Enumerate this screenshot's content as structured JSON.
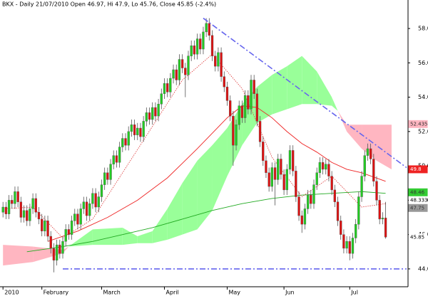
{
  "chart_data": {
    "type": "candlestick",
    "title": "BKX - Daily 21/07/2010 Open 46.97, Hi 47.9, Lo 45.76, Close 45.85 (-2.4%)",
    "categories": [
      "2010",
      null,
      null,
      null,
      null,
      null,
      null,
      null,
      null,
      null,
      null,
      null,
      null,
      "February",
      null,
      null,
      null,
      null,
      null,
      null,
      null,
      null,
      null,
      null,
      null,
      null,
      null,
      null,
      null,
      null,
      null,
      null,
      null,
      "March",
      null,
      null,
      null,
      null,
      null,
      null,
      null,
      null,
      null,
      null,
      null,
      null,
      null,
      null,
      null,
      null,
      null,
      null,
      null,
      null,
      "April",
      null,
      null,
      null,
      null,
      null,
      null,
      null,
      null,
      null,
      null,
      null,
      null,
      null,
      null,
      null,
      null,
      null,
      null,
      null,
      null,
      "May",
      null,
      null,
      null,
      null,
      null,
      null,
      null,
      null,
      null,
      null,
      null,
      null,
      null,
      null,
      null,
      null,
      null,
      null,
      "Jun",
      null,
      null,
      null,
      null,
      null,
      null,
      null,
      null,
      null,
      null,
      null,
      null,
      null,
      null,
      null,
      null,
      null,
      null,
      null,
      null,
      null,
      "Jul",
      null,
      null,
      null,
      null,
      null,
      null,
      null,
      null,
      null,
      null,
      null,
      null
    ],
    "open": [
      47.3,
      47.6,
      47.2,
      48.0,
      47.8,
      48.5,
      47.9,
      47.0,
      47.4,
      46.8,
      47.5,
      48.1,
      47.3,
      46.9,
      46.2,
      46.8,
      45.9,
      45.2,
      44.5,
      45.4,
      44.9,
      45.6,
      46.3,
      46.0,
      46.8,
      47.2,
      46.6,
      47.5,
      47.9,
      47.1,
      47.8,
      48.4,
      47.6,
      48.2,
      48.9,
      49.6,
      49.2,
      50.1,
      50.6,
      50.2,
      51.1,
      51.6,
      51.2,
      52.0,
      52.4,
      51.8,
      52.2,
      51.7,
      52.6,
      53.1,
      52.7,
      53.4,
      52.9,
      53.6,
      54.2,
      54.8,
      54.3,
      55.1,
      55.6,
      55.0,
      56.2,
      55.7,
      55.3,
      56.4,
      57.0,
      56.5,
      57.4,
      56.8,
      57.8,
      58.3,
      57.6,
      56.4,
      55.8,
      56.6,
      55.2,
      54.6,
      53.8,
      52.9,
      51.2,
      52.4,
      53.5,
      52.8,
      54.1,
      53.3,
      55.0,
      54.2,
      52.6,
      51.4,
      50.3,
      49.6,
      48.8,
      49.9,
      49.2,
      50.4,
      49.5,
      48.6,
      49.8,
      50.9,
      49.7,
      48.2,
      47.1,
      46.6,
      47.5,
      48.3,
      47.8,
      48.9,
      49.6,
      50.2,
      49.8,
      50.1,
      49.4,
      48.6,
      47.9,
      46.8,
      46.0,
      45.2,
      45.6,
      44.9,
      45.8,
      46.6,
      48.2,
      49.4,
      50.6,
      51.0,
      50.4,
      49.1,
      48.0,
      46.9,
      46.97
    ],
    "high": [
      47.9,
      47.9,
      48.3,
      48.3,
      48.8,
      48.8,
      48.2,
      47.7,
      47.7,
      47.8,
      48.4,
      48.4,
      47.6,
      47.2,
      47.1,
      47.1,
      46.2,
      45.5,
      45.7,
      45.7,
      45.9,
      46.6,
      46.6,
      47.1,
      47.5,
      47.5,
      47.8,
      48.2,
      48.2,
      48.1,
      48.7,
      48.7,
      48.5,
      49.2,
      49.9,
      49.9,
      50.4,
      50.9,
      50.9,
      51.4,
      51.9,
      51.9,
      52.3,
      52.7,
      52.7,
      52.5,
      52.5,
      52.9,
      53.4,
      53.4,
      53.7,
      53.7,
      53.9,
      54.5,
      55.1,
      55.1,
      55.4,
      55.9,
      55.9,
      56.5,
      56.5,
      56.0,
      56.7,
      57.3,
      57.3,
      57.7,
      57.7,
      58.1,
      58.6,
      58.6,
      57.9,
      56.7,
      56.9,
      56.9,
      55.5,
      54.9,
      54.1,
      53.2,
      52.7,
      53.8,
      53.8,
      54.4,
      54.4,
      55.3,
      55.3,
      54.5,
      52.9,
      51.7,
      50.6,
      49.9,
      50.2,
      50.2,
      50.7,
      50.7,
      49.8,
      50.1,
      51.2,
      51.2,
      50.0,
      48.5,
      47.4,
      47.8,
      48.6,
      48.6,
      49.2,
      49.9,
      50.5,
      50.5,
      50.4,
      50.4,
      49.7,
      48.9,
      48.2,
      47.1,
      46.3,
      45.9,
      45.9,
      46.1,
      46.9,
      48.5,
      49.7,
      50.9,
      51.3,
      51.3,
      50.7,
      49.4,
      48.3,
      47.3,
      47.9
    ],
    "low": [
      47.0,
      46.9,
      46.9,
      47.5,
      47.5,
      47.6,
      46.7,
      46.7,
      46.5,
      46.5,
      47.2,
      47.0,
      46.6,
      45.9,
      45.9,
      45.6,
      44.9,
      43.8,
      44.2,
      44.6,
      44.6,
      45.3,
      45.7,
      45.7,
      46.5,
      46.3,
      46.3,
      47.2,
      46.8,
      46.8,
      47.5,
      47.3,
      47.3,
      47.9,
      48.6,
      48.9,
      48.9,
      49.8,
      49.9,
      49.9,
      50.8,
      50.9,
      50.9,
      51.7,
      51.5,
      51.5,
      51.4,
      51.4,
      52.3,
      52.4,
      52.4,
      52.6,
      52.6,
      53.3,
      53.9,
      54.0,
      54.0,
      54.8,
      54.7,
      54.7,
      55.4,
      54.0,
      55.0,
      56.1,
      56.2,
      56.2,
      56.5,
      56.5,
      57.5,
      57.3,
      56.1,
      55.5,
      55.5,
      54.9,
      54.3,
      53.5,
      52.6,
      50.0,
      50.9,
      52.1,
      52.5,
      52.5,
      53.0,
      53.0,
      53.9,
      52.3,
      51.1,
      50.0,
      49.3,
      48.5,
      48.5,
      47.7,
      48.9,
      49.2,
      48.3,
      48.3,
      49.5,
      49.4,
      47.9,
      46.8,
      46.1,
      46.3,
      47.2,
      47.5,
      47.5,
      48.6,
      49.3,
      49.5,
      49.5,
      49.1,
      48.3,
      47.6,
      46.5,
      45.7,
      44.9,
      44.9,
      44.5,
      44.6,
      45.5,
      46.3,
      47.9,
      49.1,
      50.3,
      50.1,
      48.8,
      47.7,
      46.6,
      46.6,
      45.76
    ],
    "close": [
      47.6,
      47.2,
      48.0,
      47.8,
      48.5,
      47.9,
      47.0,
      47.4,
      46.8,
      47.5,
      48.1,
      47.3,
      46.9,
      46.2,
      46.8,
      45.9,
      45.2,
      44.5,
      45.4,
      44.9,
      45.6,
      46.3,
      46.0,
      46.8,
      47.2,
      46.6,
      47.5,
      47.9,
      47.1,
      47.8,
      48.4,
      47.6,
      48.2,
      48.9,
      49.6,
      49.2,
      50.1,
      50.6,
      50.2,
      51.1,
      51.6,
      51.2,
      52.0,
      52.4,
      51.8,
      52.2,
      51.7,
      52.6,
      53.1,
      52.7,
      53.4,
      52.9,
      53.6,
      54.2,
      54.8,
      54.3,
      55.1,
      55.6,
      55.0,
      56.2,
      55.7,
      55.3,
      56.4,
      57.0,
      56.5,
      57.4,
      56.8,
      57.8,
      58.3,
      57.6,
      56.4,
      55.8,
      56.6,
      55.2,
      54.6,
      53.8,
      52.9,
      51.2,
      52.4,
      53.5,
      52.8,
      54.1,
      53.3,
      55.0,
      54.2,
      52.6,
      51.4,
      50.3,
      49.6,
      48.8,
      49.9,
      49.2,
      50.4,
      49.5,
      48.6,
      49.8,
      50.9,
      49.7,
      48.2,
      47.1,
      46.6,
      47.5,
      48.3,
      47.8,
      48.9,
      49.6,
      50.2,
      49.8,
      50.1,
      49.4,
      48.6,
      47.9,
      46.8,
      46.0,
      45.2,
      45.6,
      44.9,
      45.8,
      46.6,
      48.2,
      49.4,
      50.6,
      51.0,
      50.4,
      49.1,
      48.0,
      46.9,
      46.97,
      45.85
    ],
    "up_color": "#22cc22",
    "down_color": "#dd1111",
    "cloud": {
      "x": [
        0,
        10,
        20,
        22,
        30,
        40,
        45,
        50,
        55,
        60,
        65,
        70,
        75,
        80,
        85,
        90,
        95,
        100,
        105,
        110,
        112,
        115,
        120,
        125,
        130
      ],
      "span_a": [
        44.2,
        44.4,
        44.9,
        45.3,
        46.3,
        46.4,
        45.9,
        46.2,
        47.5,
        49.0,
        50.3,
        51.2,
        52.2,
        53.6,
        54.6,
        55.3,
        55.8,
        56.4,
        55.5,
        54.0,
        53.2,
        52.0,
        51.0,
        50.3,
        49.8
      ],
      "span_b": [
        45.4,
        45.3,
        45.1,
        45.3,
        45.4,
        45.4,
        45.5,
        45.5,
        45.7,
        46.0,
        46.3,
        47.4,
        49.4,
        51.2,
        52.5,
        53.0,
        53.3,
        53.6,
        53.6,
        53.5,
        53.2,
        52.4,
        52.4,
        52.4,
        52.4
      ],
      "up_color": "#99ff99",
      "down_color": "#ffb6c1"
    },
    "lines": [
      {
        "color": "#ee2222",
        "dash": false,
        "x": [
          15,
          25,
          35,
          45,
          55,
          65,
          75,
          80,
          85,
          90,
          95,
          100,
          105,
          110,
          115,
          120,
          128
        ],
        "values": [
          45.6,
          46.2,
          47.0,
          48.0,
          49.3,
          51.0,
          52.8,
          53.5,
          53.4,
          52.8,
          52.0,
          51.3,
          50.8,
          50.2,
          49.8,
          49.6,
          49.1
        ]
      },
      {
        "color": "#22aa22",
        "dash": false,
        "x": [
          8,
          20,
          30,
          40,
          50,
          60,
          70,
          80,
          90,
          100,
          110,
          120,
          128
        ],
        "values": [
          45.0,
          45.3,
          45.6,
          46.0,
          46.4,
          46.9,
          47.4,
          47.8,
          48.1,
          48.3,
          48.4,
          48.5,
          48.4
        ]
      },
      {
        "color": "#dd3333",
        "dash": true,
        "x": [
          0,
          10,
          20,
          30,
          40,
          50,
          60,
          70,
          80,
          90,
          100,
          110,
          120,
          128
        ],
        "values": [
          47.5,
          47.6,
          45.8,
          46.9,
          49.6,
          52.3,
          55.0,
          56.5,
          54.5,
          50.5,
          48.2,
          49.4,
          47.6,
          47.8
        ]
      }
    ],
    "trendlines": [
      {
        "color": "#6666ee",
        "x": [
          67,
          135
        ],
        "values": [
          58.6,
          49.9
        ]
      },
      {
        "color": "#6666ee",
        "x": [
          20,
          135
        ],
        "values": [
          44.0,
          44.0
        ]
      }
    ],
    "price_labels": [
      {
        "value": 52.435,
        "bg": "#ffb6c1",
        "fg": "#333333"
      },
      {
        "value": 49.8,
        "bg": "#ee2222",
        "fg": "#ffffff"
      },
      {
        "value": 48.46,
        "bg": "#33cc33",
        "fg": "#333333"
      },
      {
        "value": 48.3331,
        "bg": "#ffffff",
        "fg": "#000000"
      },
      {
        "value": 47.75,
        "bg": "#999999",
        "fg": "#333333"
      },
      {
        "value": 45.85,
        "bg": "#ffffff",
        "fg": "#000000"
      }
    ],
    "xlim": [
      -1,
      135.5
    ],
    "ylim": [
      42.96,
      59.66
    ],
    "yticks": [
      {
        "value": 44,
        "label": "44.0"
      },
      {
        "value": 46,
        "label": "46.0"
      },
      {
        "value": 48,
        "label": "48.0"
      },
      {
        "value": 50,
        "label": "50.0"
      },
      {
        "value": 52,
        "label": "52.0"
      },
      {
        "value": 54,
        "label": "54.0"
      },
      {
        "value": 56,
        "label": "56.0"
      },
      {
        "value": 58,
        "label": "58.0"
      }
    ]
  }
}
